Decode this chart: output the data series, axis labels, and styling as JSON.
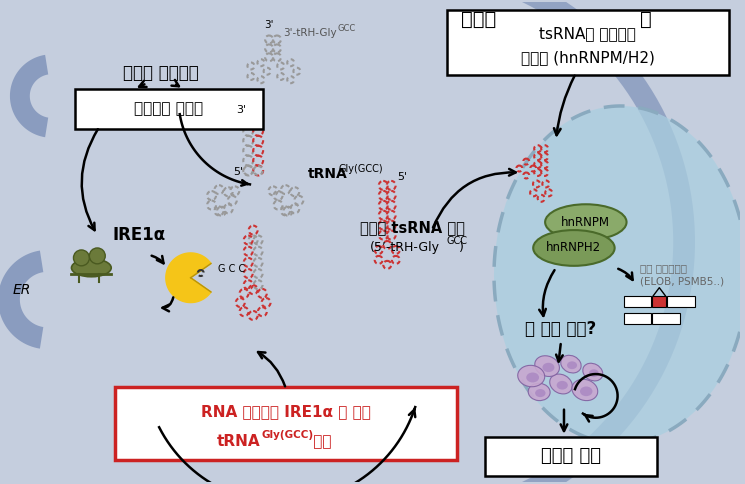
{
  "bg_color": "#c5cede",
  "cell_membrane_color": "#8a9cbf",
  "nucleus_bg": "#aacfe0",
  "nucleus_border": "#8aaabf",
  "white": "#ffffff",
  "black": "#000000",
  "red": "#cc2222",
  "dark_red": "#cc2222",
  "gray_trna": "#999999",
  "red_trna": "#cc3333",
  "olive": "#6b7a3a",
  "yellow": "#f5c518",
  "green_hnrnp": "#8aaa6a",
  "green_hnrnp2": "#7a9a58",
  "purple_cell": "#c8a8d0",
  "purple_dark": "#8060a0",
  "gray_text": "#666666",
  "stress_text": "소포체 스트레스",
  "enzyme_box_text": "분해효소 활성화",
  "ire1a_text": "IRE1α",
  "er_text": "ER",
  "trna_label": "tRNA",
  "trna_super": "Gly(GCC)",
  "three_prime_frag": "3’-tRH-Gly",
  "three_prime_super": "GCC",
  "three_prime_mark": "3’",
  "five_prime_mark": "5’",
  "tsrna_label": "생성된 tsRNA 조각",
  "tsrna_sub1": "(5’-tRH-Gly",
  "tsrna_sub_super": "GCC",
  "tsrna_sub2": ")",
  "bottom_line1": "RNA 분해효소 IRE1α 에 의한",
  "bottom_line2_pre": "tRNA",
  "bottom_line2_super": "Gly(GCC)",
  "bottom_line2_post": " 절단",
  "cytoplasm_text": "세포질",
  "nucleus_text": "핵",
  "top_box_line1": "tsRNA와 결합하는",
  "top_box_line2": "단백질 (hnRNPM/H2)",
  "hnrnpm_text": "hnRNPM",
  "hnrnph2_text": "hnRNPH2",
  "splicing_line1": "대체 스플라이싱",
  "splicing_line2": "(ELOB, PSMB5..)",
  "cancer_pathway": "암 촉진 경로?",
  "cancer_growth": "암세포 증식",
  "gcc_label": "GCC"
}
